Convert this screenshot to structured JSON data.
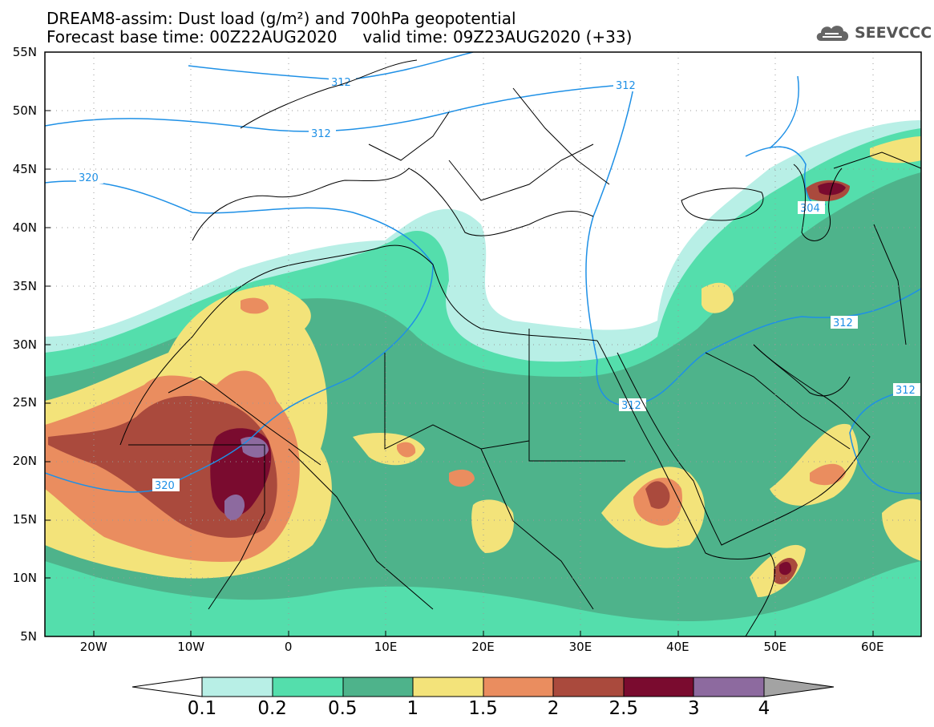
{
  "title": {
    "line1": "DREAM8-assim: Dust load (g/m²) and 700hPa geopotential",
    "line2": "Forecast base time: 00Z22AUG2020     valid time: 09Z23AUG2020 (+33)"
  },
  "logo": {
    "text": "SEEVCCC",
    "icon": "cloud-logo-icon"
  },
  "axes": {
    "lat_labels": [
      "55N",
      "50N",
      "45N",
      "40N",
      "35N",
      "30N",
      "25N",
      "20N",
      "15N",
      "10N",
      "5N"
    ],
    "lon_labels": [
      "20W",
      "10W",
      "0",
      "10E",
      "20E",
      "30E",
      "40E",
      "50E",
      "60E"
    ]
  },
  "contour_labels": [
    "312",
    "312",
    "312",
    "320",
    "320",
    "312",
    "312",
    "312",
    "304"
  ],
  "colorbar": {
    "ticks": [
      "0.1",
      "0.2",
      "0.5",
      "1",
      "1.5",
      "2",
      "2.5",
      "3",
      "4"
    ],
    "colors": [
      "#b8efe6",
      "#54deac",
      "#4eb38b",
      "#f3e37a",
      "#ea8d5f",
      "#aa4a3d",
      "#7a0b2f",
      "#8d6a9f",
      "#a3a3a3"
    ]
  }
}
